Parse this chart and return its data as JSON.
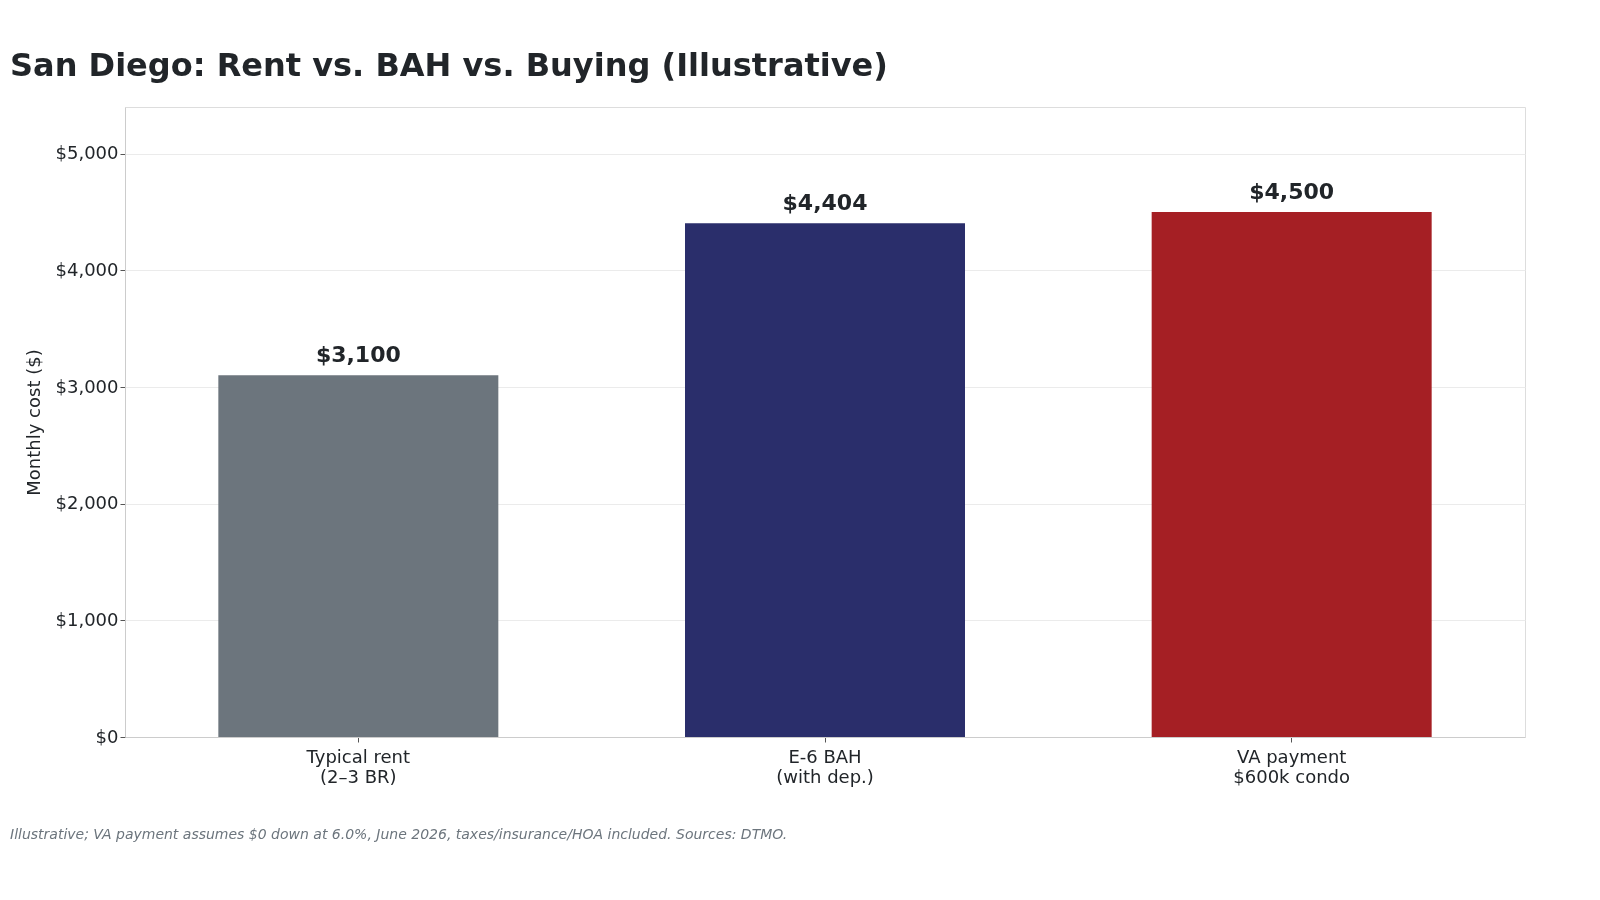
{
  "chart_data": {
    "type": "bar",
    "title": "San Diego: Rent vs. BAH vs. Buying (Illustrative)",
    "ylabel": "Monthly cost ($)",
    "categories": [
      "Typical rent\n(2–3 BR)",
      "E-6 BAH\n(with dep.)",
      "VA payment\n$600k condo"
    ],
    "values": [
      3100,
      4404,
      4500
    ],
    "colors": [
      "#6c757d",
      "#2a2e6b",
      "#a51f24"
    ],
    "value_labels": [
      "$3,100",
      "$4,404",
      "$4,500"
    ],
    "ylim": [
      0,
      5400
    ],
    "yticks": [
      {
        "value": 0,
        "label": "$0"
      },
      {
        "value": 1000,
        "label": "$1,000"
      },
      {
        "value": 2000,
        "label": "$2,000"
      },
      {
        "value": 3000,
        "label": "$3,000"
      },
      {
        "value": 4000,
        "label": "$4,000"
      },
      {
        "value": 5000,
        "label": "$5,000"
      }
    ],
    "grid": "y",
    "legend": false,
    "annotations": [
      "Illustrative; VA payment assumes $0 down at 6.0%, June 2026, taxes/insurance/HOA included. Sources: DTMO."
    ]
  }
}
